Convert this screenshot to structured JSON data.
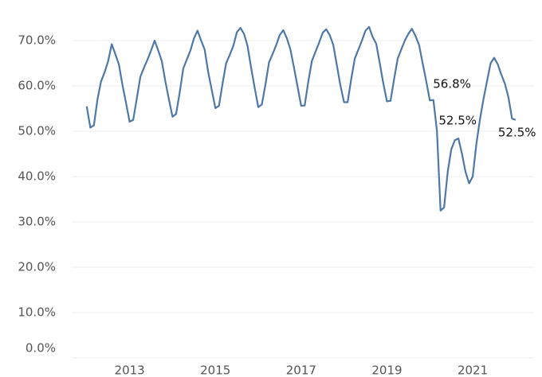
{
  "chart_data": {
    "type": "line",
    "x": [
      2012,
      2012.083,
      2012.167,
      2012.25,
      2012.333,
      2012.417,
      2012.5,
      2012.583,
      2012.667,
      2012.75,
      2012.833,
      2012.917,
      2013,
      2013.083,
      2013.167,
      2013.25,
      2013.333,
      2013.417,
      2013.5,
      2013.583,
      2013.667,
      2013.75,
      2013.833,
      2013.917,
      2014,
      2014.083,
      2014.167,
      2014.25,
      2014.333,
      2014.417,
      2014.5,
      2014.583,
      2014.667,
      2014.75,
      2014.833,
      2014.917,
      2015,
      2015.083,
      2015.167,
      2015.25,
      2015.333,
      2015.417,
      2015.5,
      2015.583,
      2015.667,
      2015.75,
      2015.833,
      2015.917,
      2016,
      2016.083,
      2016.167,
      2016.25,
      2016.333,
      2016.417,
      2016.5,
      2016.583,
      2016.667,
      2016.75,
      2016.833,
      2016.917,
      2017,
      2017.083,
      2017.167,
      2017.25,
      2017.333,
      2017.417,
      2017.5,
      2017.583,
      2017.667,
      2017.75,
      2017.833,
      2017.917,
      2018,
      2018.083,
      2018.167,
      2018.25,
      2018.333,
      2018.417,
      2018.5,
      2018.583,
      2018.667,
      2018.75,
      2018.833,
      2018.917,
      2019,
      2019.083,
      2019.167,
      2019.25,
      2019.333,
      2019.417,
      2019.5,
      2019.583,
      2019.667,
      2019.75,
      2019.833,
      2019.917,
      2020,
      2020.083,
      2020.167,
      2020.25,
      2020.333,
      2020.417,
      2020.5,
      2020.583,
      2020.667,
      2020.75,
      2020.833,
      2020.917,
      2021,
      2021.083,
      2021.167,
      2021.25,
      2021.333,
      2021.417,
      2021.5,
      2021.583,
      2021.667,
      2021.75,
      2021.833,
      2021.917,
      2022
    ],
    "series": [
      {
        "color": "#4e79a7",
        "values": [
          55.5,
          50.8,
          51.3,
          57,
          61,
          63,
          65.5,
          69.2,
          67,
          64.7,
          60.2,
          56.2,
          52.1,
          52.5,
          57.2,
          62,
          64,
          65.8,
          67.8,
          70,
          67.8,
          65.5,
          61,
          57,
          53.2,
          53.8,
          58.5,
          63.8,
          65.8,
          67.8,
          70.5,
          72.2,
          70,
          68,
          63,
          59,
          55.1,
          55.6,
          60.5,
          65,
          66.8,
          68.8,
          71.8,
          72.8,
          71.5,
          68.8,
          64,
          59.5,
          55.3,
          55.9,
          60.3,
          65.2,
          67,
          69,
          71.2,
          72.3,
          70.5,
          68,
          64,
          59.8,
          55.6,
          55.7,
          61,
          65.5,
          67.5,
          69.5,
          71.7,
          72.5,
          71.2,
          69,
          64.5,
          60,
          56.4,
          56.4,
          61.5,
          66,
          68,
          70,
          72.2,
          73,
          70.8,
          69.3,
          65,
          60.5,
          56.6,
          56.7,
          61.5,
          66,
          68,
          70,
          71.5,
          72.6,
          71,
          69,
          65,
          61,
          56.8,
          56.9,
          50,
          32.5,
          33.2,
          41,
          46,
          48,
          48.4,
          45,
          41,
          38.5,
          40,
          47,
          52.5,
          57,
          61,
          65,
          66.2,
          64.8,
          62.5,
          60.5,
          57.5,
          52.8,
          52.5
        ]
      }
    ],
    "annotations": [
      {
        "x": 2020,
        "value": 56.8,
        "label": "56.8%"
      },
      {
        "x": 2021.167,
        "value": 52.5,
        "label": "52.5%"
      },
      {
        "x": 2022,
        "value": 52.5,
        "label": "52.5%"
      }
    ],
    "xlim": [
      2011.65,
      2022.43
    ],
    "xticks": [
      2013,
      2015,
      2017,
      2019,
      2021
    ],
    "ylim": [
      0,
      75
    ],
    "yticks": [
      {
        "value": 0,
        "label": "0.0%"
      },
      {
        "value": 10,
        "label": "10.0%"
      },
      {
        "value": 20,
        "label": "20.0%"
      },
      {
        "value": 30,
        "label": "30.0%"
      },
      {
        "value": 40,
        "label": "40.0%"
      },
      {
        "value": 50,
        "label": "50.0%"
      },
      {
        "value": 60,
        "label": "60.0%"
      },
      {
        "value": 70,
        "label": "70.0%"
      }
    ],
    "grid": true
  }
}
